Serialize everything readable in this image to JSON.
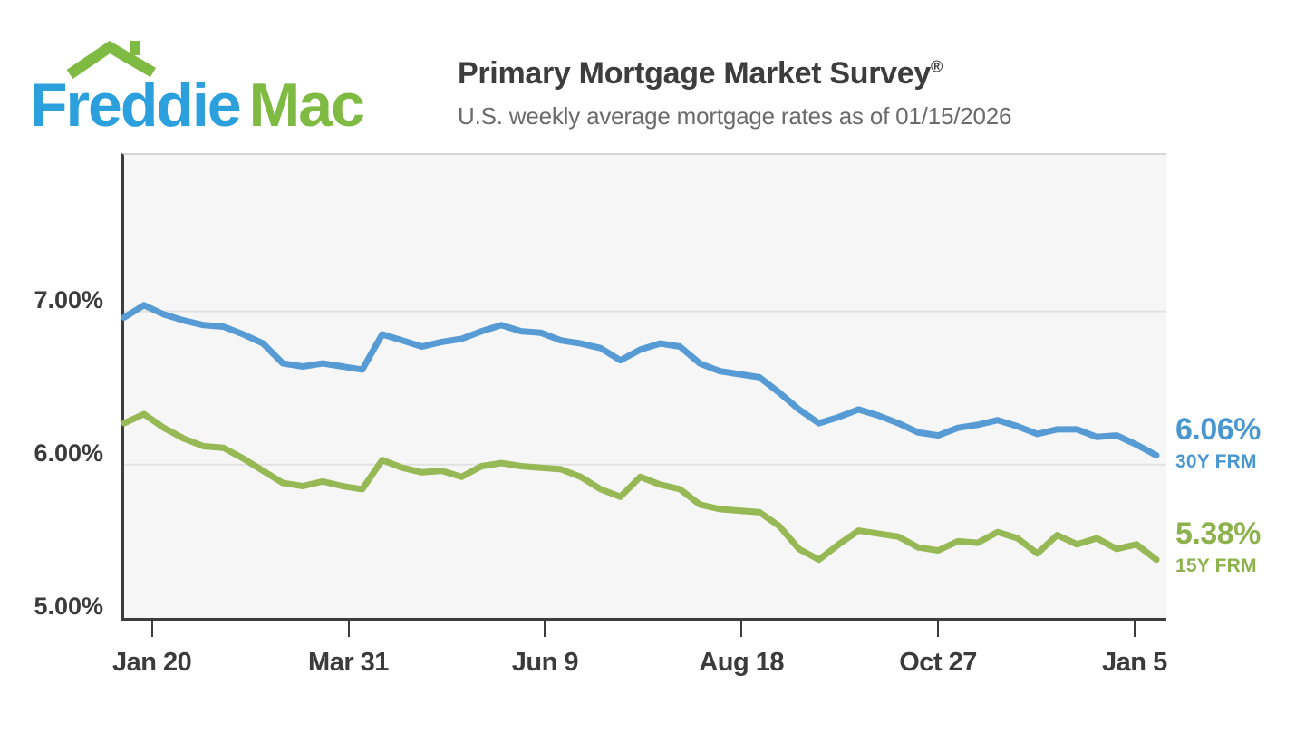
{
  "brand": {
    "name_part1": "Freddie",
    "name_part2": "Mac",
    "logo_blue": "#2ba0dc",
    "logo_green": "#7fba42"
  },
  "header": {
    "title": "Primary Mortgage Market Survey",
    "title_mark": "®",
    "subtitle": "U.S. weekly average mortgage rates as of 01/15/2026"
  },
  "chart_data": {
    "type": "line",
    "title": "Primary Mortgage Market Survey",
    "x_unit": "weekly observations, Jan 2025 - Jan 2026",
    "grid": "horizontal",
    "legend_position": "right-of-line-ends",
    "ylim": [
      5.0,
      8.02
    ],
    "y_ticks": [
      {
        "label": "7.00%",
        "value": 7.0
      },
      {
        "label": "6.00%",
        "value": 6.0
      },
      {
        "label": "5.00%",
        "value": 5.0
      }
    ],
    "x_ticks": [
      {
        "label": "Jan 20",
        "week": 1.4
      },
      {
        "label": "Mar 31",
        "week": 11.3
      },
      {
        "label": "Jun 9",
        "week": 21.2
      },
      {
        "label": "Aug 18",
        "week": 31.1
      },
      {
        "label": "Oct 27",
        "week": 41.0
      },
      {
        "label": "Jan 5",
        "week": 50.9
      }
    ],
    "series": [
      {
        "name": "30Y FRM",
        "latest_label": "6.06%",
        "latest_value": 6.06,
        "color": "#579bd5",
        "label_color": "#4a97d0",
        "values": [
          6.96,
          7.04,
          6.98,
          6.94,
          6.91,
          6.9,
          6.85,
          6.79,
          6.66,
          6.64,
          6.66,
          6.64,
          6.62,
          6.85,
          6.81,
          6.77,
          6.8,
          6.82,
          6.87,
          6.91,
          6.87,
          6.86,
          6.81,
          6.79,
          6.76,
          6.68,
          6.75,
          6.79,
          6.77,
          6.66,
          6.61,
          6.59,
          6.57,
          6.47,
          6.36,
          6.27,
          6.31,
          6.36,
          6.32,
          6.27,
          6.21,
          6.19,
          6.24,
          6.26,
          6.29,
          6.25,
          6.2,
          6.23,
          6.23,
          6.18,
          6.19,
          6.13,
          6.06
        ]
      },
      {
        "name": "15Y FRM",
        "latest_label": "5.38%",
        "latest_value": 5.38,
        "color": "#96b855",
        "label_color": "#8db14d",
        "values": [
          6.27,
          6.33,
          6.24,
          6.17,
          6.12,
          6.11,
          6.04,
          5.96,
          5.88,
          5.86,
          5.89,
          5.86,
          5.84,
          6.03,
          5.98,
          5.95,
          5.96,
          5.92,
          5.99,
          6.01,
          5.99,
          5.98,
          5.97,
          5.92,
          5.84,
          5.79,
          5.92,
          5.87,
          5.84,
          5.74,
          5.71,
          5.7,
          5.69,
          5.6,
          5.45,
          5.38,
          5.48,
          5.57,
          5.55,
          5.53,
          5.46,
          5.44,
          5.5,
          5.49,
          5.56,
          5.52,
          5.42,
          5.54,
          5.48,
          5.52,
          5.45,
          5.48,
          5.38
        ]
      }
    ]
  }
}
